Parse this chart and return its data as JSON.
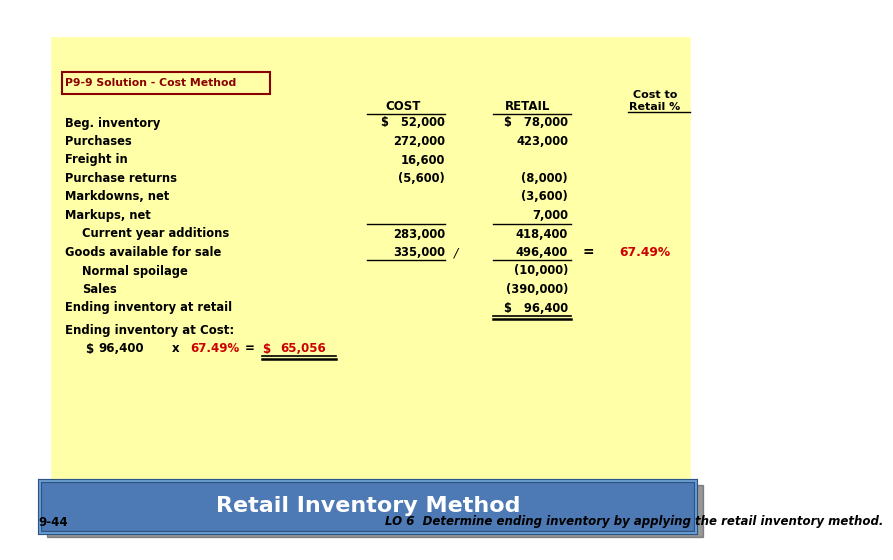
{
  "title": "Retail Inventory Method",
  "title_bg": "#4d7ab5",
  "title_color": "white",
  "body_bg": "#FFFFA8",
  "slide_bg": "#FFFFFF",
  "footer_text": "LO 6  Determine ending inventory by applying the retail inventory method.",
  "footer_label": "9-44",
  "box_label": "P9-9 Solution - Cost Method",
  "rows": [
    {
      "label": "Beg. inventory",
      "cost": "$   52,000",
      "retail": "$   78,000",
      "indent": false
    },
    {
      "label": "Purchases",
      "cost": "272,000",
      "retail": "423,000",
      "indent": false
    },
    {
      "label": "Freight in",
      "cost": "16,600",
      "retail": "",
      "indent": false
    },
    {
      "label": "Purchase returns",
      "cost": "(5,600)",
      "retail": "(8,000)",
      "indent": false
    },
    {
      "label": "Markdowns, net",
      "cost": "",
      "retail": "(3,600)",
      "indent": false
    },
    {
      "label": "Markups, net",
      "cost": "",
      "retail": "7,000",
      "indent": false
    },
    {
      "label": "Current year additions",
      "cost": "283,000",
      "retail": "418,400",
      "indent": true,
      "underline_above": true
    },
    {
      "label": "Goods available for sale",
      "cost": "335,000",
      "retail": "496,400",
      "indent": false,
      "underline_below": true,
      "ratio": "67.49%",
      "slash": true
    },
    {
      "label": "Normal spoilage",
      "cost": "",
      "retail": "(10,000)",
      "indent": true
    },
    {
      "label": "Sales",
      "cost": "",
      "retail": "(390,000)",
      "indent": true
    },
    {
      "label": "Ending inventory at retail",
      "cost": "",
      "retail": "$   96,400",
      "indent": false,
      "double_underline": true
    }
  ],
  "ending_cost_label": "Ending inventory at Cost:",
  "ending_cost_dollar": "$",
  "ending_cost_amount": "96,400",
  "ending_cost_x": "x",
  "ending_cost_pct": "67.49%",
  "ending_cost_eq": "=",
  "ending_result_dollar": "$",
  "ending_result_amount": "65,056"
}
